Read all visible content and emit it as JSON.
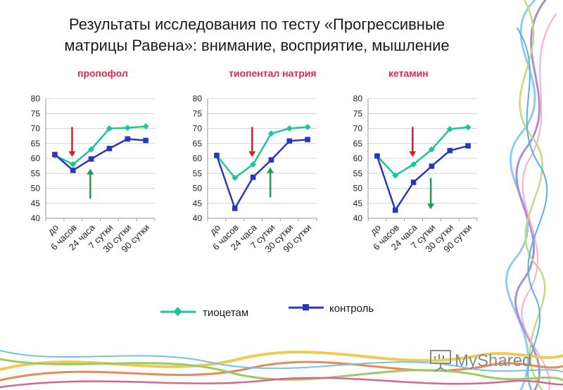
{
  "title": {
    "line1": "Результаты исследования по тесту «Прогрессивные",
    "line2": "матрицы Равена»: внимание, восприятие, мышление"
  },
  "watermark": {
    "text": "MyShared",
    "icon": "presentation-board-icon"
  },
  "colors": {
    "thiocetam": "#1fc59a",
    "control": "#2c37b6",
    "arrow_red": "#e11a22",
    "arrow_green": "#17a04f",
    "drug_label": "#e0284e"
  },
  "chart_data": [
    {
      "type": "line",
      "title": "пропофол",
      "categories": [
        "до",
        "6 часов",
        "24 часа",
        "7 сутки",
        "30 сутки",
        "90 сутки"
      ],
      "ylim": [
        40,
        80
      ],
      "yticks": [
        "40",
        "45",
        "50",
        "55",
        "60",
        "65",
        "70",
        "75",
        "80"
      ],
      "series": [
        {
          "name": "тиоцетам",
          "values": [
            61,
            58,
            63,
            70,
            70.2,
            70.7
          ]
        },
        {
          "name": "контроль",
          "values": [
            61.3,
            56,
            59.8,
            63.3,
            66.5,
            66
          ]
        }
      ],
      "annotations": [
        {
          "type": "arrow-down",
          "color": "red",
          "category": "6 часов",
          "from": 70.5,
          "to": 60.5
        },
        {
          "type": "arrow-up",
          "color": "green",
          "category": "24 часа",
          "from": 46.5,
          "to": 56.5
        }
      ]
    },
    {
      "type": "line",
      "title": "тиопентал натрия",
      "categories": [
        "до",
        "6 часов",
        "24 часа",
        "7 сутки",
        "30 сутки",
        "90 сутки"
      ],
      "ylim": [
        40,
        80
      ],
      "yticks": [
        "40",
        "45",
        "50",
        "55",
        "60",
        "65",
        "70",
        "75",
        "80"
      ],
      "series": [
        {
          "name": "тиоцетам",
          "values": [
            61,
            53.5,
            58,
            68.3,
            70,
            70.5
          ]
        },
        {
          "name": "контроль",
          "values": [
            61,
            43.3,
            53.7,
            59.5,
            65.8,
            66.3
          ]
        }
      ],
      "annotations": [
        {
          "type": "arrow-down",
          "color": "red",
          "category": "24 часа",
          "from": 70.5,
          "to": 60.5
        },
        {
          "type": "arrow-up",
          "color": "green",
          "category": "7 сутки",
          "from": 47,
          "to": 57
        }
      ]
    },
    {
      "type": "line",
      "title": "кетамин",
      "categories": [
        "до",
        "6 часов",
        "24 часа",
        "7 сутки",
        "30 сутки",
        "90 сутки"
      ],
      "ylim": [
        40,
        80
      ],
      "yticks": [
        "40",
        "45",
        "50",
        "55",
        "60",
        "65",
        "70",
        "75",
        "80"
      ],
      "series": [
        {
          "name": "тиоцетам",
          "values": [
            60.8,
            54.3,
            58,
            63,
            69.8,
            70.4
          ]
        },
        {
          "name": "контроль",
          "values": [
            60.8,
            42.7,
            52,
            57.4,
            62.6,
            64.2
          ]
        }
      ],
      "annotations": [
        {
          "type": "arrow-down",
          "color": "red",
          "category": "24 часа",
          "from": 70.5,
          "to": 60.5
        },
        {
          "type": "arrow-up",
          "color": "green",
          "category": "7 сутки",
          "from": 53.5,
          "to": 43
        }
      ]
    }
  ]
}
